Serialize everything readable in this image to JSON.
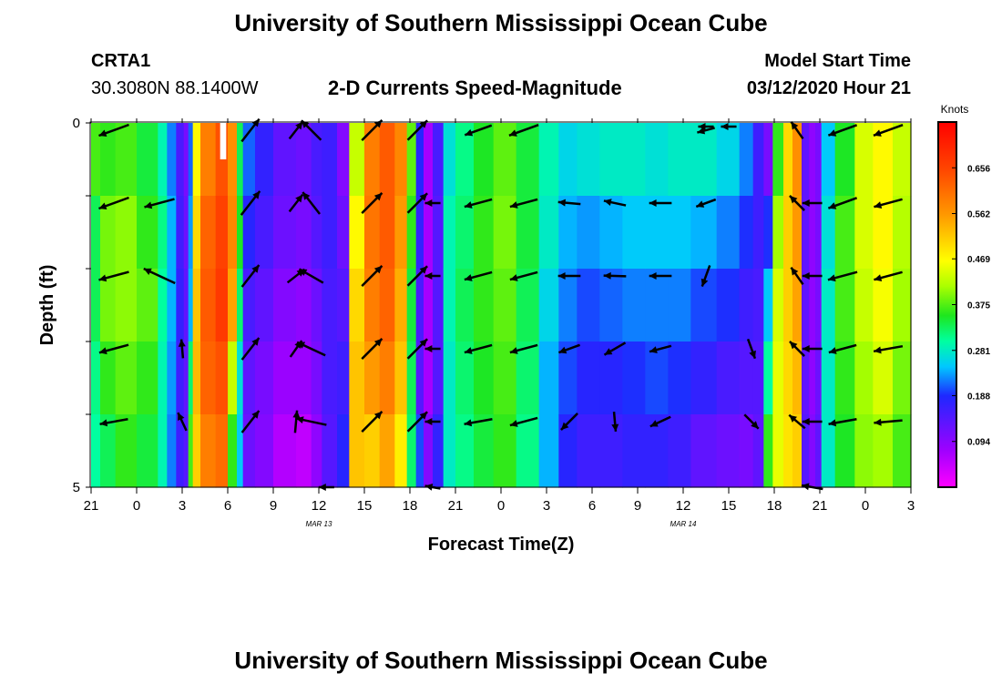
{
  "page": {
    "title_top": "University of Southern Mississippi Ocean Cube",
    "title_bottom": "University of Southern Mississippi Ocean Cube",
    "station": "CRTA1",
    "coords": "30.3080N 88.1400W",
    "plot_title": "2-D Currents Speed-Magnitude",
    "model_start_label": "Model Start Time",
    "model_start_value": "03/12/2020 Hour 21"
  },
  "chart_data": {
    "type": "heatmap",
    "title": "2-D Currents Speed-Magnitude",
    "xlabel": "Forecast Time(Z)",
    "ylabel": "Depth (ft)",
    "x_hours_since_start": [
      0,
      54
    ],
    "ylim": [
      0,
      5
    ],
    "y_tick_values": [
      0,
      1,
      2,
      3,
      4,
      5
    ],
    "y_tick_labels": [
      "0",
      "",
      "",
      "",
      "",
      "5"
    ],
    "x_tick_hours": [
      0,
      3,
      6,
      9,
      12,
      15,
      18,
      21,
      24,
      27,
      30,
      33,
      36,
      39,
      42,
      45,
      48,
      51,
      54
    ],
    "x_tick_labels": [
      "21",
      "0",
      "3",
      "6",
      "9",
      "12",
      "15",
      "18",
      "21",
      "0",
      "3",
      "6",
      "9",
      "12",
      "15",
      "18",
      "21",
      "0",
      "3"
    ],
    "date_labels": [
      {
        "hour": 15,
        "text": "MAR 13"
      },
      {
        "hour": 39,
        "text": "MAR 14"
      }
    ],
    "colorbar": {
      "units": "Knots",
      "min": 0.0,
      "max": 0.75,
      "ticks": [
        0.094,
        0.188,
        0.281,
        0.375,
        0.469,
        0.562,
        0.656
      ],
      "tick_labels": [
        "0.094",
        "0.188",
        "0.281",
        "0.375",
        "0.469",
        "0.562",
        "0.656"
      ]
    },
    "speed_columns": [
      {
        "t0": 0,
        "t1": 0.6,
        "vals": [
          0.37,
          0.33,
          0.33,
          0.31,
          0.3
        ]
      },
      {
        "t0": 0.6,
        "t1": 1.6,
        "vals": [
          0.36,
          0.39,
          0.39,
          0.36,
          0.33
        ]
      },
      {
        "t0": 1.6,
        "t1": 3.0,
        "vals": [
          0.37,
          0.4,
          0.4,
          0.38,
          0.36
        ]
      },
      {
        "t0": 3.0,
        "t1": 4.4,
        "vals": [
          0.34,
          0.36,
          0.38,
          0.36,
          0.34
        ]
      },
      {
        "t0": 4.4,
        "t1": 5.0,
        "vals": [
          0.29,
          0.31,
          0.3,
          0.29,
          0.29
        ]
      },
      {
        "t0": 5.0,
        "t1": 5.6,
        "vals": [
          0.22,
          0.24,
          0.24,
          0.23,
          0.22
        ]
      },
      {
        "t0": 5.6,
        "t1": 6.1,
        "vals": [
          0.15,
          0.16,
          0.17,
          0.16,
          0.16
        ]
      },
      {
        "t0": 6.1,
        "t1": 6.4,
        "vals": [
          0.11,
          0.12,
          0.13,
          0.13,
          0.14
        ]
      },
      {
        "t0": 6.4,
        "t1": 6.7,
        "vals": [
          0.21,
          0.23,
          0.24,
          0.32,
          0.37
        ]
      },
      {
        "t0": 6.7,
        "t1": 7.2,
        "vals": [
          0.47,
          0.5,
          0.52,
          0.53,
          0.51
        ]
      },
      {
        "t0": 7.2,
        "t1": 8.2,
        "vals": [
          0.59,
          0.62,
          0.63,
          0.62,
          0.59
        ]
      },
      {
        "t0": 8.2,
        "t1": 9.0,
        "vals": [
          0.64,
          0.66,
          0.67,
          0.64,
          0.61
        ]
      },
      {
        "t0": 9.0,
        "t1": 9.6,
        "vals": [
          0.57,
          0.58,
          0.55,
          0.43,
          0.36
        ]
      },
      {
        "t0": 9.6,
        "t1": 10.0,
        "vals": [
          0.33,
          0.35,
          0.32,
          0.27,
          0.25
        ]
      },
      {
        "t0": 10.0,
        "t1": 10.8,
        "vals": [
          0.21,
          0.18,
          0.15,
          0.13,
          0.12
        ]
      },
      {
        "t0": 10.8,
        "t1": 12.0,
        "vals": [
          0.17,
          0.15,
          0.13,
          0.11,
          0.1
        ]
      },
      {
        "t0": 12.0,
        "t1": 13.5,
        "vals": [
          0.13,
          0.12,
          0.1,
          0.08,
          0.06
        ]
      },
      {
        "t0": 13.5,
        "t1": 14.5,
        "vals": [
          0.12,
          0.11,
          0.09,
          0.08,
          0.05
        ]
      },
      {
        "t0": 14.5,
        "t1": 15.2,
        "vals": [
          0.15,
          0.14,
          0.12,
          0.11,
          0.09
        ]
      },
      {
        "t0": 15.2,
        "t1": 16.2,
        "vals": [
          0.16,
          0.16,
          0.15,
          0.15,
          0.14
        ]
      },
      {
        "t0": 16.2,
        "t1": 17.0,
        "vals": [
          0.1,
          0.12,
          0.14,
          0.16,
          0.18
        ]
      },
      {
        "t0": 17.0,
        "t1": 18.0,
        "vals": [
          0.43,
          0.47,
          0.5,
          0.52,
          0.52
        ]
      },
      {
        "t0": 18.0,
        "t1": 19.0,
        "vals": [
          0.59,
          0.6,
          0.59,
          0.56,
          0.51
        ]
      },
      {
        "t0": 19.0,
        "t1": 20.0,
        "vals": [
          0.63,
          0.63,
          0.62,
          0.59,
          0.55
        ]
      },
      {
        "t0": 20.0,
        "t1": 20.8,
        "vals": [
          0.58,
          0.56,
          0.54,
          0.52,
          0.48
        ]
      },
      {
        "t0": 20.8,
        "t1": 21.4,
        "vals": [
          0.38,
          0.36,
          0.34,
          0.33,
          0.32
        ]
      },
      {
        "t0": 21.4,
        "t1": 21.9,
        "vals": [
          0.18,
          0.17,
          0.15,
          0.14,
          0.2
        ]
      },
      {
        "t0": 21.9,
        "t1": 22.5,
        "vals": [
          0.07,
          0.07,
          0.07,
          0.07,
          0.1
        ]
      },
      {
        "t0": 22.5,
        "t1": 23.2,
        "vals": [
          0.15,
          0.14,
          0.14,
          0.14,
          0.17
        ]
      },
      {
        "t0": 23.2,
        "t1": 24.0,
        "vals": [
          0.27,
          0.29,
          0.29,
          0.28,
          0.28
        ]
      },
      {
        "t0": 24.0,
        "t1": 25.2,
        "vals": [
          0.31,
          0.32,
          0.33,
          0.32,
          0.31
        ]
      },
      {
        "t0": 25.2,
        "t1": 26.5,
        "vals": [
          0.35,
          0.36,
          0.36,
          0.35,
          0.34
        ]
      },
      {
        "t0": 26.5,
        "t1": 28.0,
        "vals": [
          0.38,
          0.39,
          0.38,
          0.37,
          0.36
        ]
      },
      {
        "t0": 28.0,
        "t1": 29.5,
        "vals": [
          0.34,
          0.34,
          0.33,
          0.32,
          0.31
        ]
      },
      {
        "t0": 29.5,
        "t1": 30.8,
        "vals": [
          0.29,
          0.28,
          0.26,
          0.24,
          0.24
        ]
      },
      {
        "t0": 30.8,
        "t1": 32.0,
        "vals": [
          0.26,
          0.24,
          0.22,
          0.2,
          0.18
        ]
      },
      {
        "t0": 32.0,
        "t1": 33.5,
        "vals": [
          0.27,
          0.23,
          0.2,
          0.18,
          0.16
        ]
      },
      {
        "t0": 33.5,
        "t1": 35.0,
        "vals": [
          0.28,
          0.24,
          0.21,
          0.18,
          0.16
        ]
      },
      {
        "t0": 35.0,
        "t1": 36.5,
        "vals": [
          0.28,
          0.25,
          0.22,
          0.19,
          0.17
        ]
      },
      {
        "t0": 36.5,
        "t1": 38.0,
        "vals": [
          0.27,
          0.25,
          0.22,
          0.2,
          0.17
        ]
      },
      {
        "t0": 38.0,
        "t1": 39.5,
        "vals": [
          0.28,
          0.25,
          0.22,
          0.19,
          0.16
        ]
      },
      {
        "t0": 39.5,
        "t1": 41.2,
        "vals": [
          0.28,
          0.24,
          0.2,
          0.17,
          0.13
        ]
      },
      {
        "t0": 41.2,
        "t1": 42.7,
        "vals": [
          0.26,
          0.22,
          0.19,
          0.15,
          0.12
        ]
      },
      {
        "t0": 42.7,
        "t1": 43.6,
        "vals": [
          0.22,
          0.19,
          0.16,
          0.14,
          0.11
        ]
      },
      {
        "t0": 43.6,
        "t1": 44.3,
        "vals": [
          0.16,
          0.16,
          0.15,
          0.14,
          0.13
        ]
      },
      {
        "t0": 44.3,
        "t1": 44.9,
        "vals": [
          0.11,
          0.19,
          0.25,
          0.3,
          0.36
        ]
      },
      {
        "t0": 44.9,
        "t1": 45.6,
        "vals": [
          0.36,
          0.41,
          0.44,
          0.45,
          0.45
        ]
      },
      {
        "t0": 45.6,
        "t1": 46.2,
        "vals": [
          0.5,
          0.51,
          0.51,
          0.5,
          0.49
        ]
      },
      {
        "t0": 46.2,
        "t1": 46.8,
        "vals": [
          0.57,
          0.56,
          0.55,
          0.53,
          0.51
        ]
      },
      {
        "t0": 46.8,
        "t1": 47.3,
        "vals": [
          0.13,
          0.13,
          0.13,
          0.13,
          0.14
        ]
      },
      {
        "t0": 47.3,
        "t1": 47.7,
        "vals": [
          0.09,
          0.09,
          0.09,
          0.09,
          0.1
        ]
      },
      {
        "t0": 47.7,
        "t1": 48.1,
        "vals": [
          0.11,
          0.11,
          0.11,
          0.12,
          0.13
        ]
      },
      {
        "t0": 48.1,
        "t1": 49.0,
        "vals": [
          0.25,
          0.27,
          0.28,
          0.28,
          0.28
        ]
      },
      {
        "t0": 49.0,
        "t1": 50.3,
        "vals": [
          0.35,
          0.37,
          0.37,
          0.36,
          0.35
        ]
      },
      {
        "t0": 50.3,
        "t1": 51.5,
        "vals": [
          0.44,
          0.44,
          0.43,
          0.41,
          0.4
        ]
      },
      {
        "t0": 51.5,
        "t1": 52.8,
        "vals": [
          0.47,
          0.47,
          0.46,
          0.44,
          0.41
        ]
      },
      {
        "t0": 52.8,
        "t1": 54.0,
        "vals": [
          0.43,
          0.42,
          0.41,
          0.39,
          0.37
        ]
      }
    ],
    "missing_blocks": [
      {
        "t0": 8.5,
        "t1": 8.9,
        "depth0": 0,
        "depth1": 0.5
      }
    ],
    "vectors": [
      {
        "t": 1.5,
        "d": 0.1,
        "dir": 200,
        "mag": 0.37
      },
      {
        "t": 1.5,
        "d": 1.1,
        "dir": 200,
        "mag": 0.37
      },
      {
        "t": 1.5,
        "d": 2.1,
        "dir": 195,
        "mag": 0.36
      },
      {
        "t": 1.5,
        "d": 3.1,
        "dir": 195,
        "mag": 0.35
      },
      {
        "t": 1.5,
        "d": 4.1,
        "dir": 190,
        "mag": 0.33
      },
      {
        "t": 4.5,
        "d": 1.1,
        "dir": 195,
        "mag": 0.36
      },
      {
        "t": 4.5,
        "d": 2.1,
        "dir": 155,
        "mag": 0.4
      },
      {
        "t": 6.0,
        "d": 3.1,
        "dir": 95,
        "mag": 0.22
      },
      {
        "t": 6.0,
        "d": 4.1,
        "dir": 115,
        "mag": 0.23
      },
      {
        "t": 10.5,
        "d": 0.1,
        "dir": 52,
        "mag": 0.33
      },
      {
        "t": 10.5,
        "d": 1.1,
        "dir": 52,
        "mag": 0.35
      },
      {
        "t": 10.5,
        "d": 2.1,
        "dir": 52,
        "mag": 0.32
      },
      {
        "t": 10.5,
        "d": 3.1,
        "dir": 52,
        "mag": 0.32
      },
      {
        "t": 10.5,
        "d": 4.1,
        "dir": 52,
        "mag": 0.32
      },
      {
        "t": 13.5,
        "d": 0.1,
        "dir": 52,
        "mag": 0.25
      },
      {
        "t": 13.5,
        "d": 1.1,
        "dir": 52,
        "mag": 0.25
      },
      {
        "t": 13.5,
        "d": 2.1,
        "dir": 38,
        "mag": 0.25
      },
      {
        "t": 13.5,
        "d": 3.1,
        "dir": 55,
        "mag": 0.23
      },
      {
        "t": 13.5,
        "d": 4.1,
        "dir": 85,
        "mag": 0.26
      },
      {
        "t": 14.5,
        "d": 0.1,
        "dir": 135,
        "mag": 0.32
      },
      {
        "t": 14.5,
        "d": 1.1,
        "dir": 128,
        "mag": 0.32
      },
      {
        "t": 14.5,
        "d": 2.1,
        "dir": 150,
        "mag": 0.32
      },
      {
        "t": 14.5,
        "d": 3.1,
        "dir": 155,
        "mag": 0.36
      },
      {
        "t": 14.5,
        "d": 4.1,
        "dir": 168,
        "mag": 0.36
      },
      {
        "t": 15.5,
        "d": 5.0,
        "dir": 180,
        "mag": 0.18
      },
      {
        "t": 18.5,
        "d": 0.1,
        "dir": 45,
        "mag": 0.33
      },
      {
        "t": 18.5,
        "d": 1.1,
        "dir": 45,
        "mag": 0.33
      },
      {
        "t": 18.5,
        "d": 2.1,
        "dir": 45,
        "mag": 0.33
      },
      {
        "t": 18.5,
        "d": 3.1,
        "dir": 45,
        "mag": 0.33
      },
      {
        "t": 18.5,
        "d": 4.1,
        "dir": 45,
        "mag": 0.33
      },
      {
        "t": 21.5,
        "d": 0.1,
        "dir": 45,
        "mag": 0.32
      },
      {
        "t": 21.5,
        "d": 1.1,
        "dir": 45,
        "mag": 0.32
      },
      {
        "t": 21.5,
        "d": 2.1,
        "dir": 45,
        "mag": 0.32
      },
      {
        "t": 21.5,
        "d": 3.1,
        "dir": 45,
        "mag": 0.32
      },
      {
        "t": 21.5,
        "d": 4.1,
        "dir": 45,
        "mag": 0.32
      },
      {
        "t": 22.5,
        "d": 1.1,
        "dir": 180,
        "mag": 0.18
      },
      {
        "t": 22.5,
        "d": 2.1,
        "dir": 180,
        "mag": 0.18
      },
      {
        "t": 22.5,
        "d": 3.1,
        "dir": 180,
        "mag": 0.18
      },
      {
        "t": 22.5,
        "d": 4.1,
        "dir": 180,
        "mag": 0.18
      },
      {
        "t": 22.5,
        "d": 5.0,
        "dir": 170,
        "mag": 0.18
      },
      {
        "t": 25.5,
        "d": 0.1,
        "dir": 200,
        "mag": 0.33
      },
      {
        "t": 25.5,
        "d": 1.1,
        "dir": 195,
        "mag": 0.33
      },
      {
        "t": 25.5,
        "d": 2.1,
        "dir": 195,
        "mag": 0.33
      },
      {
        "t": 25.5,
        "d": 3.1,
        "dir": 195,
        "mag": 0.33
      },
      {
        "t": 25.5,
        "d": 4.1,
        "dir": 190,
        "mag": 0.33
      },
      {
        "t": 28.5,
        "d": 0.1,
        "dir": 200,
        "mag": 0.36
      },
      {
        "t": 28.5,
        "d": 1.1,
        "dir": 195,
        "mag": 0.33
      },
      {
        "t": 28.5,
        "d": 2.1,
        "dir": 195,
        "mag": 0.33
      },
      {
        "t": 28.5,
        "d": 3.1,
        "dir": 195,
        "mag": 0.33
      },
      {
        "t": 28.5,
        "d": 4.1,
        "dir": 195,
        "mag": 0.33
      },
      {
        "t": 31.5,
        "d": 1.1,
        "dir": 175,
        "mag": 0.26
      },
      {
        "t": 31.5,
        "d": 2.1,
        "dir": 180,
        "mag": 0.26
      },
      {
        "t": 31.5,
        "d": 3.1,
        "dir": 200,
        "mag": 0.26
      },
      {
        "t": 31.5,
        "d": 4.1,
        "dir": 225,
        "mag": 0.27
      },
      {
        "t": 34.5,
        "d": 1.1,
        "dir": 168,
        "mag": 0.26
      },
      {
        "t": 34.5,
        "d": 2.1,
        "dir": 178,
        "mag": 0.26
      },
      {
        "t": 34.5,
        "d": 3.1,
        "dir": 210,
        "mag": 0.28
      },
      {
        "t": 34.5,
        "d": 4.1,
        "dir": 275,
        "mag": 0.23
      },
      {
        "t": 37.5,
        "d": 1.1,
        "dir": 180,
        "mag": 0.26
      },
      {
        "t": 37.5,
        "d": 2.1,
        "dir": 180,
        "mag": 0.26
      },
      {
        "t": 37.5,
        "d": 3.1,
        "dir": 195,
        "mag": 0.26
      },
      {
        "t": 37.5,
        "d": 4.1,
        "dir": 205,
        "mag": 0.26
      },
      {
        "t": 40.5,
        "d": 0.1,
        "dir": 195,
        "mag": 0.21
      },
      {
        "t": 40.5,
        "d": 1.1,
        "dir": 200,
        "mag": 0.24
      },
      {
        "t": 40.5,
        "d": 2.1,
        "dir": 250,
        "mag": 0.26
      },
      {
        "t": 40.5,
        "d": 0.05,
        "dir": 180,
        "mag": 0.18
      },
      {
        "t": 42.0,
        "d": 0.05,
        "dir": 180,
        "mag": 0.18
      },
      {
        "t": 43.5,
        "d": 3.1,
        "dir": 290,
        "mag": 0.24
      },
      {
        "t": 43.5,
        "d": 4.1,
        "dir": 315,
        "mag": 0.23
      },
      {
        "t": 46.5,
        "d": 0.1,
        "dir": 125,
        "mag": 0.24
      },
      {
        "t": 46.5,
        "d": 1.1,
        "dir": 135,
        "mag": 0.24
      },
      {
        "t": 46.5,
        "d": 2.1,
        "dir": 125,
        "mag": 0.24
      },
      {
        "t": 46.5,
        "d": 3.1,
        "dir": 135,
        "mag": 0.24
      },
      {
        "t": 46.5,
        "d": 4.1,
        "dir": 140,
        "mag": 0.24
      },
      {
        "t": 47.5,
        "d": 1.1,
        "dir": 180,
        "mag": 0.23
      },
      {
        "t": 47.5,
        "d": 2.1,
        "dir": 180,
        "mag": 0.23
      },
      {
        "t": 47.5,
        "d": 3.1,
        "dir": 180,
        "mag": 0.23
      },
      {
        "t": 47.5,
        "d": 4.1,
        "dir": 180,
        "mag": 0.23
      },
      {
        "t": 47.5,
        "d": 5.0,
        "dir": 170,
        "mag": 0.25
      },
      {
        "t": 49.5,
        "d": 0.1,
        "dir": 200,
        "mag": 0.35
      },
      {
        "t": 49.5,
        "d": 1.1,
        "dir": 200,
        "mag": 0.35
      },
      {
        "t": 49.5,
        "d": 2.1,
        "dir": 195,
        "mag": 0.35
      },
      {
        "t": 49.5,
        "d": 3.1,
        "dir": 195,
        "mag": 0.33
      },
      {
        "t": 49.5,
        "d": 4.1,
        "dir": 190,
        "mag": 0.33
      },
      {
        "t": 52.5,
        "d": 0.1,
        "dir": 200,
        "mag": 0.36
      },
      {
        "t": 52.5,
        "d": 1.1,
        "dir": 195,
        "mag": 0.34
      },
      {
        "t": 52.5,
        "d": 2.1,
        "dir": 195,
        "mag": 0.34
      },
      {
        "t": 52.5,
        "d": 3.1,
        "dir": 190,
        "mag": 0.34
      },
      {
        "t": 52.5,
        "d": 4.1,
        "dir": 185,
        "mag": 0.33
      }
    ]
  }
}
